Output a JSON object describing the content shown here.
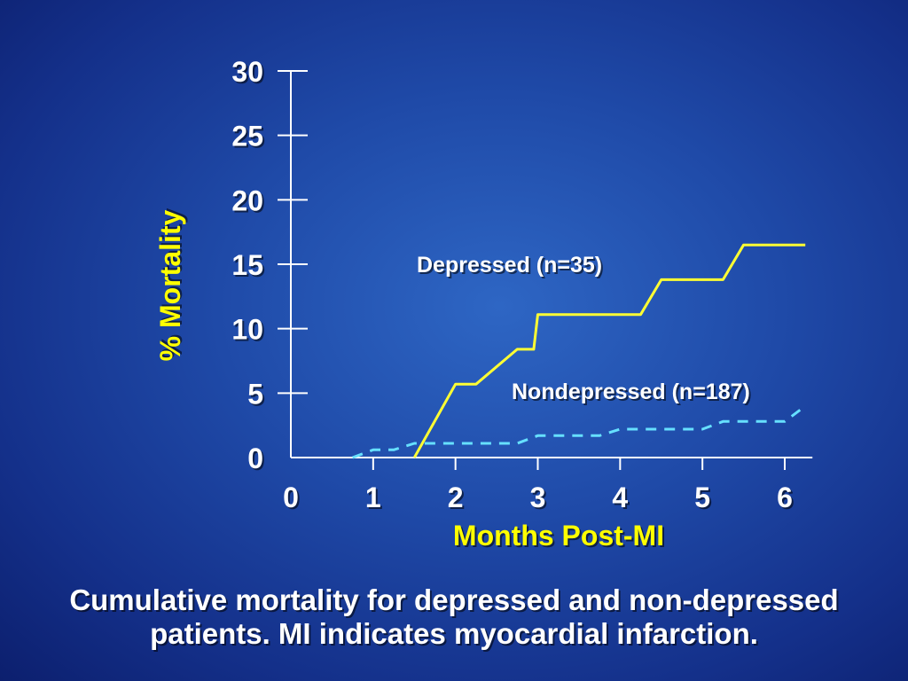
{
  "colors": {
    "background": "#1f4aa8",
    "axis": "#ffffff",
    "accent": "#ffff00",
    "depressed": "#ffff33",
    "nondepressed": "#66e0ff"
  },
  "caption": {
    "line1": "Cumulative mortality for depressed and non-depressed",
    "line2": "patients.  MI indicates myocardial infarction."
  },
  "chart_data": {
    "type": "line",
    "title": "",
    "xlabel": "Months Post-MI",
    "ylabel": "% Mortality",
    "xlim": [
      0,
      6.25
    ],
    "ylim": [
      0,
      30
    ],
    "xticks": [
      0,
      1,
      2,
      3,
      4,
      5,
      6
    ],
    "yticks": [
      0,
      5,
      10,
      15,
      20,
      25,
      30
    ],
    "grid": false,
    "legend": "inline labels",
    "series": [
      {
        "name": "Depressed (n=35)",
        "style": "solid",
        "x": [
          1.5,
          2.0,
          2.25,
          2.75,
          2.95,
          3.0,
          4.25,
          4.5,
          5.25,
          5.5,
          6.25
        ],
        "y": [
          0,
          5.7,
          5.7,
          8.4,
          8.4,
          11.1,
          11.1,
          13.8,
          13.8,
          16.5,
          16.5
        ]
      },
      {
        "name": "Nondepressed (n=187)",
        "style": "dashed",
        "x": [
          0.75,
          1.0,
          1.25,
          1.5,
          2.75,
          3.0,
          3.75,
          4.0,
          5.0,
          5.25,
          6.0,
          6.25
        ],
        "y": [
          0,
          0.6,
          0.6,
          1.1,
          1.1,
          1.7,
          1.7,
          2.2,
          2.2,
          2.8,
          2.8,
          4.0
        ]
      }
    ]
  }
}
